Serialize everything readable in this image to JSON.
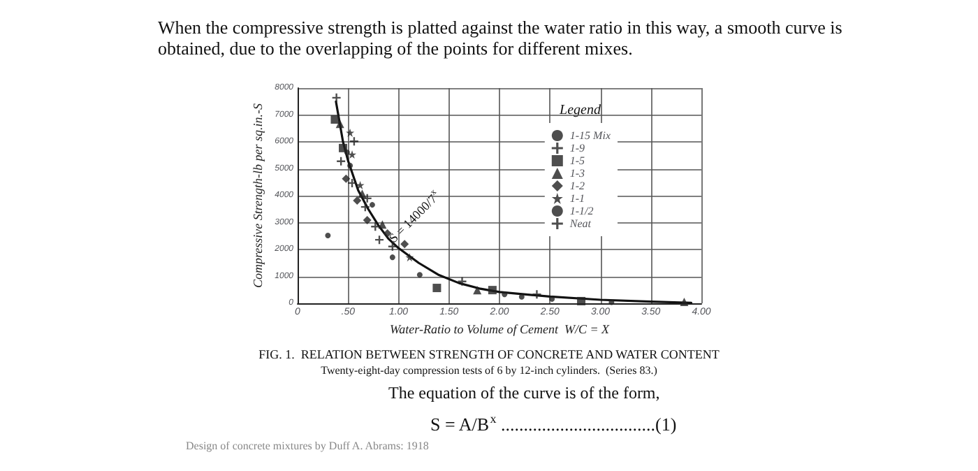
{
  "chart_data": {
    "type": "scatter",
    "title": "FIG. 1.  RELATION BETWEEN STRENGTH OF CONCRETE AND WATER CONTENT",
    "subtitle": "Twenty-eight-day compression tests of 6 by 12-inch cylinders.  (Series 83.)",
    "xlabel": "Water-Ratio to Volume of Cement  W/C = X",
    "ylabel": "Compressive Strength-lb per sq.in.-S",
    "legend_title": "Legend",
    "legend": "top right",
    "grid": true,
    "xlim": [
      0,
      4
    ],
    "xticks": [
      0,
      {
        "value": 0.5,
        "label": ".50"
      },
      {
        "value": 1,
        "label": "1.00"
      },
      {
        "value": 1.5,
        "label": "1.50"
      },
      {
        "value": 2,
        "label": "2.00"
      },
      {
        "value": 2.5,
        "label": "2.50"
      },
      {
        "value": 3,
        "label": "3.00"
      },
      {
        "value": 3.5,
        "label": "3.50"
      },
      {
        "value": 4,
        "label": "4.00"
      }
    ],
    "ylim": [
      0,
      8000
    ],
    "yticks": [
      0,
      1000,
      2000,
      3000,
      4000,
      5000,
      6000,
      7000,
      8000
    ],
    "annotations": [
      "When the compressive strength is platted against the water ratio in this way, a smooth curve is obtained, due to the overlapping of the points for different mixes.",
      "The equation of the curve is of the form,",
      "S = A/B$^{x}$ ..................................(1)",
      "Design of concrete mixtures by Duff A. Abrams: 1918",
      "S = 14000/7$^{x}$"
    ],
    "series": [
      {
        "name": "1-15 Mix",
        "color": "#222222",
        "marker": "circle",
        "x": [
          0.3,
          0.94,
          1.21,
          2.05,
          3.11
        ],
        "values": [
          2520,
          1710,
          1060,
          330,
          40
        ]
      },
      {
        "name": "1-9",
        "color": "#222222",
        "marker": "cross",
        "x": [
          0.56,
          0.77,
          1.63,
          2.37
        ],
        "values": [
          6020,
          2850,
          810,
          330
        ]
      },
      {
        "name": "1-5",
        "color": "#222222",
        "marker": "square",
        "x": [
          0.37,
          0.45,
          1.38,
          1.93,
          2.81
        ],
        "values": [
          6830,
          5770,
          570,
          490,
          80
        ]
      },
      {
        "name": "1-3",
        "color": "#222222",
        "marker": "triangle",
        "x": [
          0.42,
          0.64,
          0.84,
          1.78,
          3.83
        ],
        "values": [
          6670,
          4070,
          2930,
          490,
          50
        ]
      },
      {
        "name": "1-2",
        "color": "#222222",
        "marker": "diamond",
        "x": [
          0.48,
          0.59,
          0.69,
          0.89,
          1.06
        ],
        "values": [
          4630,
          3820,
          3090,
          2600,
          2200
        ]
      },
      {
        "name": "1-1",
        "color": "#222222",
        "marker": "star",
        "x": [
          0.52,
          0.54,
          0.62,
          1.11
        ],
        "values": [
          6340,
          5530,
          4390,
          1710
        ]
      },
      {
        "name": "1-1/2",
        "color": "#222222",
        "marker": "circle",
        "x": [
          0.49,
          0.52,
          0.74,
          2.22,
          2.52
        ],
        "values": [
          5610,
          5120,
          3660,
          240,
          160
        ]
      },
      {
        "name": "Neat",
        "color": "#222222",
        "marker": "cross",
        "x": [
          0.385,
          0.43,
          0.54,
          0.67,
          0.69,
          0.81,
          0.94
        ],
        "values": [
          7640,
          5280,
          4470,
          3580,
          3900,
          2360,
          2110
        ]
      },
      {
        "type": "line",
        "color": "#111111",
        "marker": "none",
        "line_style": "solid",
        "x": [
          0.38,
          0.45,
          0.5,
          0.6,
          0.7,
          0.8,
          0.9,
          1.0,
          1.2,
          1.4,
          1.6,
          1.8,
          2.0,
          2.5,
          3.0,
          3.5,
          3.9
        ],
        "values": [
          7500,
          6000,
          5300,
          4200,
          3500,
          2900,
          2400,
          2050,
          1500,
          1050,
          750,
          550,
          420,
          250,
          130,
          60,
          20
        ]
      }
    ]
  }
}
